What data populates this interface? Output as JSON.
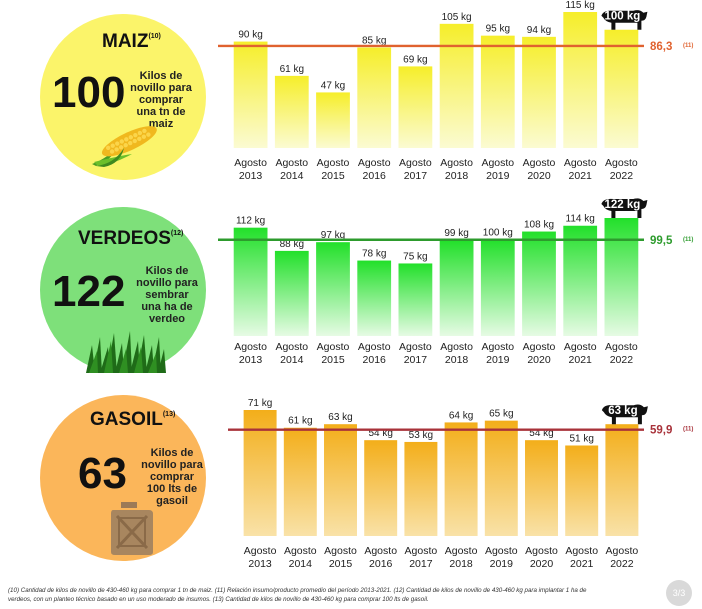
{
  "panels": [
    {
      "id": "maiz",
      "title": "MAIZ",
      "title_note": "(10)",
      "big_value": "100",
      "description": "Kilos de novillo para comprar una tn de maiz",
      "circle_color": "#fbf46a",
      "icon": "corn-icon"
    },
    {
      "id": "verdeos",
      "title": "VERDEOS",
      "title_note": "(12)",
      "big_value": "122",
      "description": "Kilos de novillo para sembrar una ha de verdeo",
      "circle_color": "#7ee07a",
      "icon": "grass-icon"
    },
    {
      "id": "gasoil",
      "title": "GASOIL",
      "title_note": "(13)",
      "big_value": "63",
      "description": "Kilos de novillo para comprar 100 lts de gasoil",
      "circle_color": "#fbb65a",
      "icon": "fuel-can-icon"
    }
  ],
  "chart_data": [
    {
      "type": "bar",
      "categories": [
        "Agosto 2013",
        "Agosto 2014",
        "Agosto 2015",
        "Agosto 2016",
        "Agosto 2017",
        "Agosto 2018",
        "Agosto 2019",
        "Agosto 2020",
        "Agosto 2021",
        "Agosto 2022"
      ],
      "values": [
        90,
        61,
        47,
        85,
        69,
        105,
        95,
        94,
        115,
        100
      ],
      "value_labels": [
        "90 kg",
        "61 kg",
        "47 kg",
        "85 kg",
        "69 kg",
        "105 kg",
        "95 kg",
        "94 kg",
        "115 kg",
        "100 kg"
      ],
      "reference_line": {
        "value": 86.3,
        "label": "86,3",
        "note": "(11)",
        "color": "#e0622f"
      },
      "highlight_label": "100 kg",
      "bar_colors": [
        "#f6ee2a",
        "#fbfbd2"
      ],
      "ylim": [
        0,
        115
      ]
    },
    {
      "type": "bar",
      "categories": [
        "Agosto 2013",
        "Agosto 2014",
        "Agosto 2015",
        "Agosto 2016",
        "Agosto 2017",
        "Agosto 2018",
        "Agosto 2019",
        "Agosto 2020",
        "Agosto 2021",
        "Agosto 2022"
      ],
      "values": [
        112,
        88,
        97,
        78,
        75,
        99,
        100,
        108,
        114,
        122
      ],
      "value_labels": [
        "112 kg",
        "88 kg",
        "97 kg",
        "78 kg",
        "75 kg",
        "99 kg",
        "100 kg",
        "108 kg",
        "114 kg",
        "122 kg"
      ],
      "reference_line": {
        "value": 99.5,
        "label": "99,5",
        "note": "(11)",
        "color": "#2d9b2d"
      },
      "highlight_label": "122 kg",
      "bar_colors": [
        "#22e02a",
        "#e6fbe4"
      ],
      "ylim": [
        0,
        122
      ]
    },
    {
      "type": "bar",
      "categories": [
        "Agosto 2013",
        "Agosto 2014",
        "Agosto 2015",
        "Agosto 2016",
        "Agosto 2017",
        "Agosto 2018",
        "Agosto 2019",
        "Agosto 2020",
        "Agosto 2021",
        "Agosto 2022"
      ],
      "values": [
        71,
        61,
        63,
        54,
        53,
        64,
        65,
        54,
        51,
        63
      ],
      "value_labels": [
        "71 kg",
        "61 kg",
        "63 kg",
        "54 kg",
        "53 kg",
        "64 kg",
        "65 kg",
        "54 kg",
        "51 kg",
        "63 kg"
      ],
      "reference_line": {
        "value": 59.9,
        "label": "59,9",
        "note": "(11)",
        "color": "#a8323a"
      },
      "highlight_label": "63 kg",
      "bar_colors": [
        "#f3ae1a",
        "#f9e2a8"
      ],
      "ylim": [
        0,
        71
      ]
    }
  ],
  "footnote": "(10) Cantidad de kilos de novillo de 430-460 kg para comprar 1 tn de maiz. (11) Relación insumo/producto promedio del período 2013-2021. (12) Cantidad de kilos de novillo de 430-460 kg para implantar 1 ha de verdeos, con un planteo técnico basado en un uso moderado de insumos. (13) Cantidad de kilos de novillo de 430-460 kg para comprar 100 lts de gasoil.",
  "page_indicator": "3/3"
}
